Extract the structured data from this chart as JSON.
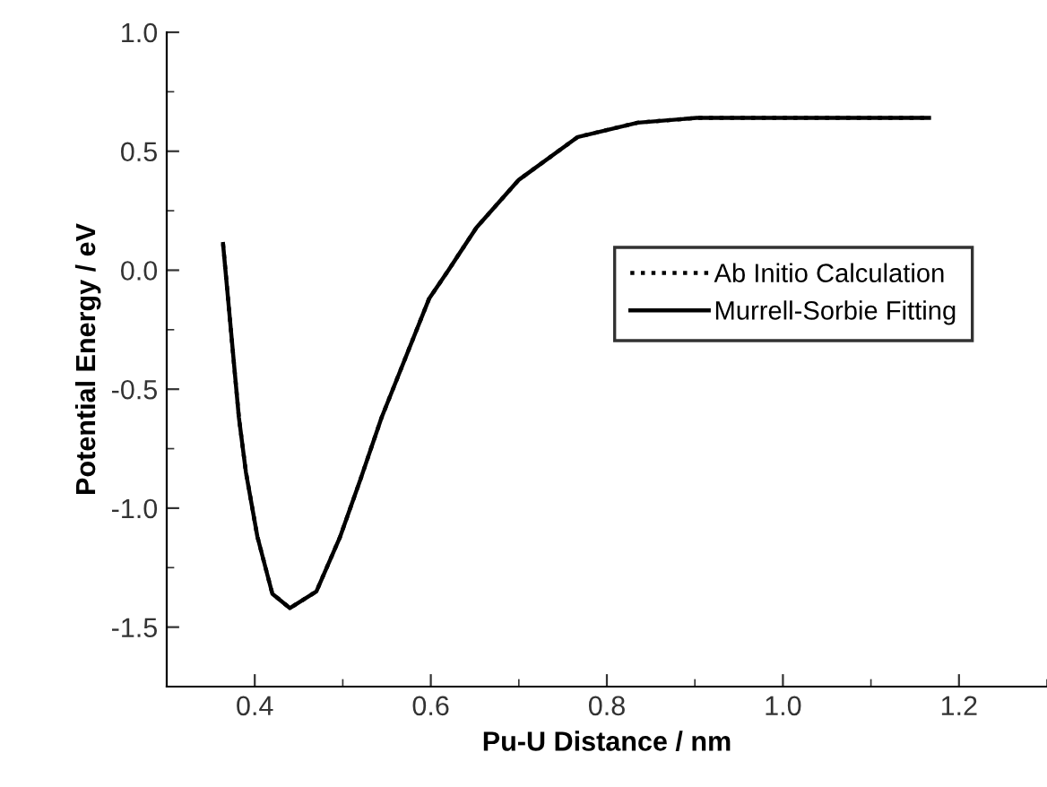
{
  "chart_data": {
    "type": "line",
    "xlabel": "Pu-U Distance / nm",
    "ylabel": "Potential Energy / eV",
    "xlim": [
      0.3,
      1.3
    ],
    "xticks": [
      0.4,
      0.6,
      0.8,
      {
        "value": 1.0,
        "label": "1.0"
      },
      1.2
    ],
    "ylim": [
      -1.75,
      1.0
    ],
    "yticks": [
      {
        "value": -1.5,
        "label": "-1.5"
      },
      {
        "value": -1.0,
        "label": "-1.0"
      },
      {
        "value": -0.5,
        "label": "-0.5"
      },
      {
        "value": 0.0,
        "label": "0.0"
      },
      {
        "value": 0.5,
        "label": "0.5"
      },
      {
        "value": 1.0,
        "label": "1.0"
      }
    ],
    "grid": false,
    "legend": "right",
    "marker": "none",
    "series": [
      {
        "name": "Ab Initio Calculation",
        "color": "#000000",
        "line_style": "dotted",
        "x": [
          0.364,
          0.382,
          0.39,
          0.403,
          0.42,
          0.44,
          0.47,
          0.497,
          0.52,
          0.544,
          0.598,
          0.62,
          0.652,
          0.7,
          0.767,
          0.835,
          0.902,
          1.166
        ],
        "values": [
          0.11,
          -0.62,
          -0.85,
          -1.12,
          -1.36,
          -1.42,
          -1.35,
          -1.12,
          -0.88,
          -0.62,
          -0.12,
          0.0,
          0.18,
          0.38,
          0.56,
          0.62,
          0.64,
          0.64
        ]
      },
      {
        "name": "Murrell-Sorbie Fitting",
        "color": "#000000",
        "line_style": "solid",
        "x": [
          0.364,
          0.382,
          0.39,
          0.403,
          0.42,
          0.44,
          0.47,
          0.497,
          0.52,
          0.544,
          0.598,
          0.62,
          0.652,
          0.7,
          0.767,
          0.835,
          0.902,
          1.166
        ],
        "values": [
          0.11,
          -0.62,
          -0.85,
          -1.12,
          -1.36,
          -1.42,
          -1.35,
          -1.12,
          -0.88,
          -0.62,
          -0.12,
          0.0,
          0.18,
          0.38,
          0.56,
          0.62,
          0.64,
          0.64
        ]
      }
    ]
  }
}
